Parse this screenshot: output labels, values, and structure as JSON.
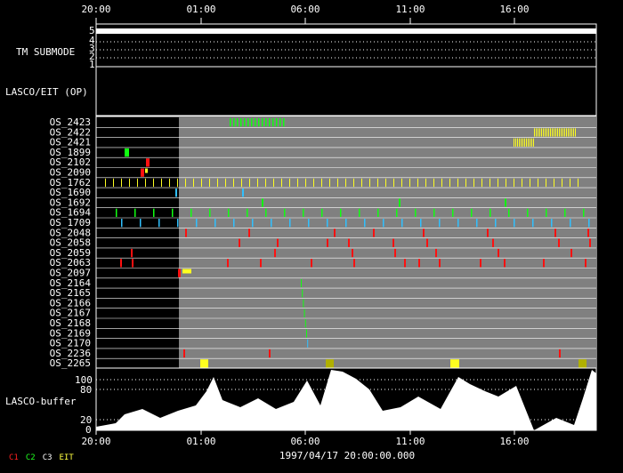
{
  "time_axis": {
    "ticks_top": [
      "20:00",
      "01:00",
      "06:00",
      "11:00",
      "16:00"
    ],
    "ticks_bottom": [
      "20:00",
      "01:00",
      "06:00",
      "11:00",
      "16:00"
    ],
    "date_caption": "1997/04/17 20:00:00.000"
  },
  "panels": {
    "tm_submode": {
      "label": "TM SUBMODE",
      "levels": [
        "5",
        "4",
        "3",
        "2",
        "1"
      ]
    },
    "lasco_eit": {
      "label": "LASCO/EIT (OP)"
    },
    "buffer": {
      "label": "LASCO-buffer",
      "ticks": [
        "100",
        "80",
        "20",
        "0"
      ]
    }
  },
  "rows": [
    "OS_2423",
    "OS_2422",
    "OS_2421",
    "OS_1899",
    "OS_2102",
    "OS_2090",
    "OS_1762",
    "OS_1690",
    "OS_1692",
    "OS_1694",
    "OS_1709",
    "OS_2048",
    "OS_2058",
    "OS_2059",
    "OS_2063",
    "OS_2097",
    "OS_2164",
    "OS_2165",
    "OS_2166",
    "OS_2167",
    "OS_2168",
    "OS_2169",
    "OS_2170",
    "OS_2236",
    "OS_2265"
  ],
  "legend": {
    "items": [
      {
        "label": "C1",
        "color": "#ff2020"
      },
      {
        "label": "C2",
        "color": "#20ff20"
      },
      {
        "label": "C3",
        "color": "#ffffff"
      },
      {
        "label": "EIT",
        "color": "#ffff40"
      }
    ]
  },
  "colors": {
    "plot_bg": "#808080",
    "red": "#ff1010",
    "green": "#10ff10",
    "yellow": "#ffff20",
    "cyan": "#30c0ff",
    "white": "#ffffff",
    "olive": "#b0b000"
  }
}
